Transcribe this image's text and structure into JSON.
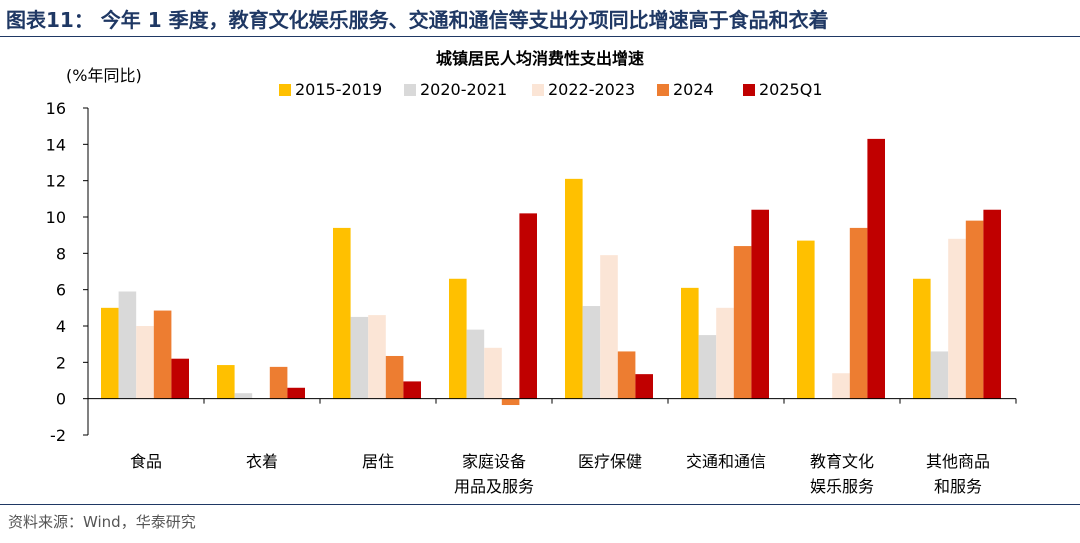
{
  "figure": {
    "title": "图表11： 今年 1 季度，教育文化娱乐服务、交通和通信等支出分项同比增速高于食品和衣着",
    "source": "资料来源：Wind，华泰研究"
  },
  "chart_data": {
    "type": "bar",
    "title": "城镇居民人均消费性支出增速",
    "ylabel": "(%年同比)",
    "xlabel": "",
    "ylim": [
      -2,
      16
    ],
    "yticks": [
      -2,
      0,
      2,
      4,
      6,
      8,
      10,
      12,
      14,
      16
    ],
    "legend_position": "top",
    "grid": false,
    "categories": [
      [
        "食品"
      ],
      [
        "衣着"
      ],
      [
        "居住"
      ],
      [
        "家庭设备",
        "用品及服务"
      ],
      [
        "医疗保健"
      ],
      [
        "交通和通信"
      ],
      [
        "教育文化",
        "娱乐服务"
      ],
      [
        "其他商品",
        "和服务"
      ]
    ],
    "series": [
      {
        "name": "2015-2019",
        "color": "#ffc000",
        "values": [
          5.0,
          1.85,
          9.4,
          6.6,
          12.1,
          6.1,
          8.7,
          6.6
        ]
      },
      {
        "name": "2020-2021",
        "color": "#d9d9d9",
        "values": [
          5.9,
          0.3,
          4.5,
          3.8,
          5.1,
          3.5,
          0.0,
          2.6
        ]
      },
      {
        "name": "2022-2023",
        "color": "#fbe5d6",
        "values": [
          4.0,
          0.0,
          4.6,
          2.8,
          7.9,
          5.0,
          1.4,
          8.8
        ]
      },
      {
        "name": "2024",
        "color": "#ed7d31",
        "values": [
          4.85,
          1.75,
          2.35,
          -0.35,
          2.6,
          8.4,
          9.4,
          9.8
        ]
      },
      {
        "name": "2025Q1",
        "color": "#c00000",
        "values": [
          2.2,
          0.6,
          0.95,
          10.2,
          1.35,
          10.4,
          14.3,
          10.4
        ]
      }
    ]
  }
}
